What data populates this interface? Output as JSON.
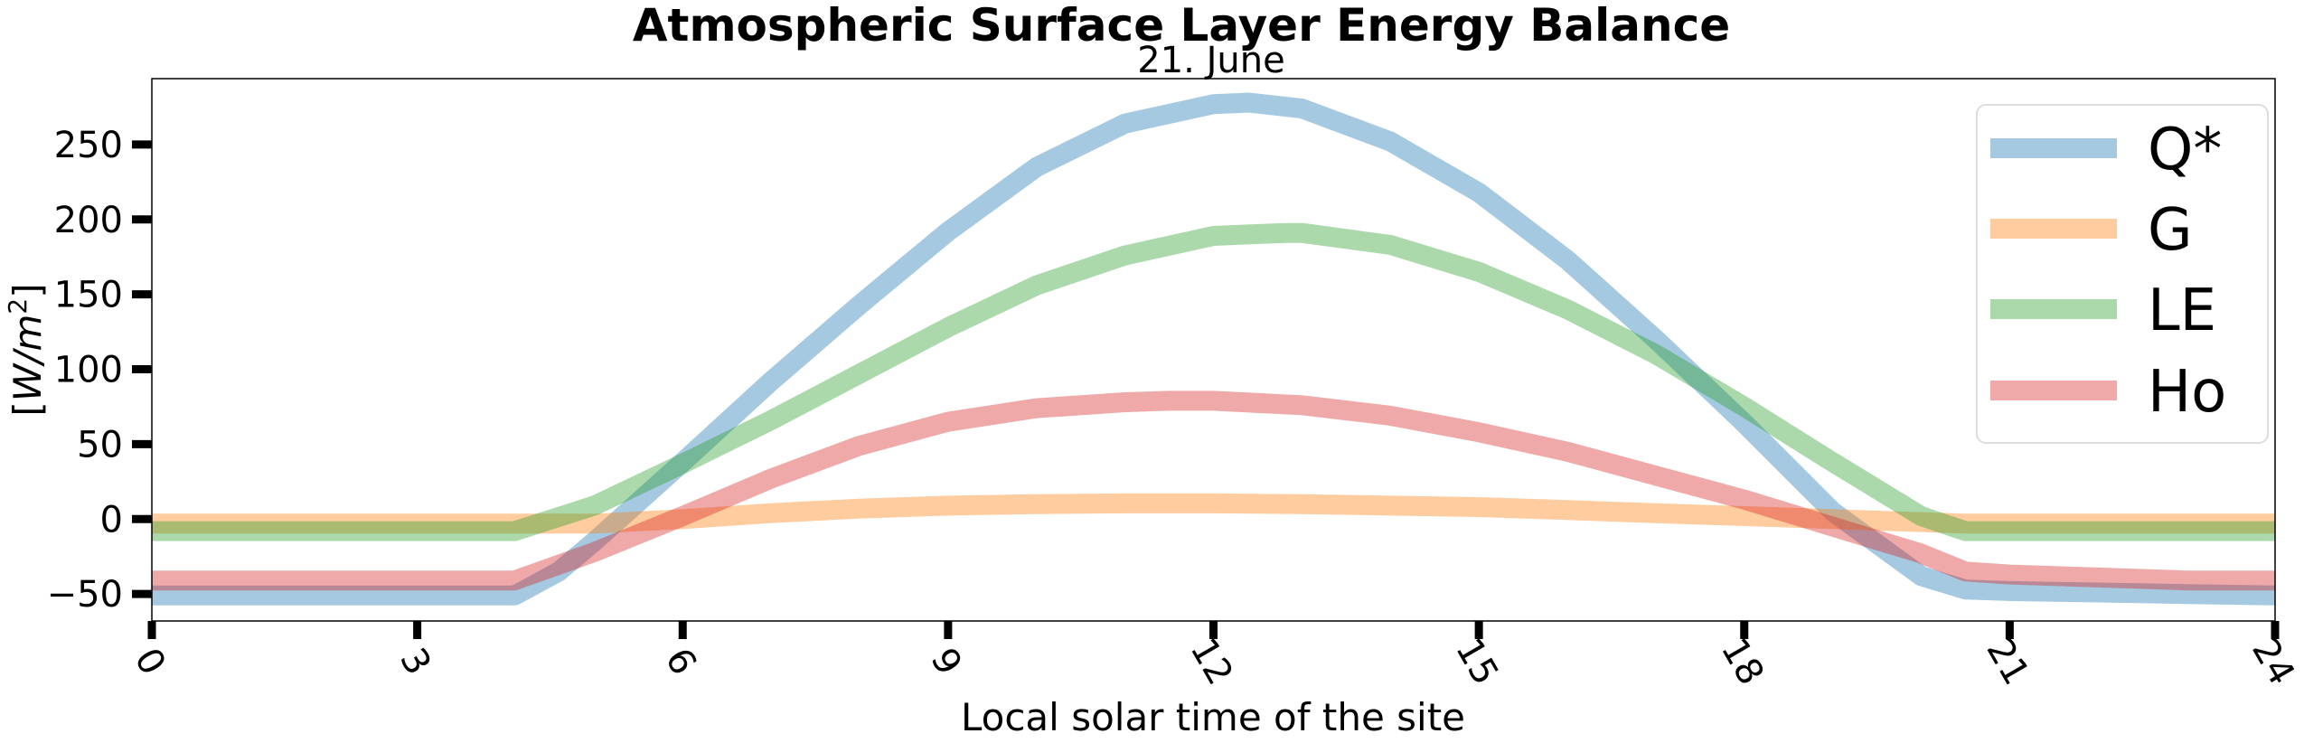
{
  "chart_data": {
    "type": "line",
    "title": "Atmospheric Surface Layer Energy Balance",
    "subtitle": "21. June",
    "xlabel": "Local solar time of the site",
    "ylabel": "[W/m²]",
    "ylabel_parts": {
      "open": "[",
      "unit": "W/m",
      "sup": "2",
      "close": "]"
    },
    "xlim": [
      0,
      24
    ],
    "ylim": [
      -68,
      294
    ],
    "xticks": [
      0,
      3,
      6,
      9,
      12,
      15,
      18,
      21,
      24
    ],
    "yticks": [
      -50,
      0,
      50,
      100,
      150,
      200,
      250
    ],
    "legend_position": "top-right",
    "grid": false,
    "series": [
      {
        "name": "Q*",
        "color": "#1f77b4",
        "points": [
          [
            0,
            -51
          ],
          [
            4.1,
            -51
          ],
          [
            4.6,
            -35
          ],
          [
            5,
            -15
          ],
          [
            6,
            38
          ],
          [
            7,
            92
          ],
          [
            8,
            143
          ],
          [
            9,
            192
          ],
          [
            10,
            235
          ],
          [
            11,
            264
          ],
          [
            12,
            277
          ],
          [
            12.4,
            278
          ],
          [
            13,
            274
          ],
          [
            14,
            252
          ],
          [
            15,
            218
          ],
          [
            16,
            173
          ],
          [
            17,
            120
          ],
          [
            18,
            64
          ],
          [
            19,
            5
          ],
          [
            20,
            -38
          ],
          [
            20.5,
            -47
          ],
          [
            21,
            -48
          ],
          [
            22,
            -49
          ],
          [
            23,
            -50
          ],
          [
            24,
            -51
          ]
        ]
      },
      {
        "name": "G",
        "color": "#ff7f0e",
        "points": [
          [
            0,
            -3
          ],
          [
            4.1,
            -3
          ],
          [
            5,
            -3
          ],
          [
            6,
            0
          ],
          [
            7,
            4
          ],
          [
            8,
            7
          ],
          [
            9,
            9
          ],
          [
            10,
            10
          ],
          [
            11,
            10.5
          ],
          [
            12,
            10.5
          ],
          [
            13,
            10
          ],
          [
            14,
            9
          ],
          [
            15,
            8
          ],
          [
            16,
            6
          ],
          [
            17,
            4
          ],
          [
            18,
            2
          ],
          [
            19,
            0
          ],
          [
            20,
            -2
          ],
          [
            20.5,
            -3
          ],
          [
            24,
            -3
          ]
        ]
      },
      {
        "name": "LE",
        "color": "#2ca02c",
        "points": [
          [
            0,
            -8
          ],
          [
            4.1,
            -8
          ],
          [
            5,
            9
          ],
          [
            6,
            37
          ],
          [
            7,
            66
          ],
          [
            8,
            97
          ],
          [
            9,
            128
          ],
          [
            10,
            156
          ],
          [
            11,
            176
          ],
          [
            12,
            189
          ],
          [
            12.8,
            191
          ],
          [
            13,
            191
          ],
          [
            14,
            183
          ],
          [
            15,
            165
          ],
          [
            16,
            140
          ],
          [
            17,
            110
          ],
          [
            18,
            75
          ],
          [
            19,
            38
          ],
          [
            20,
            2
          ],
          [
            20.5,
            -8
          ],
          [
            24,
            -8
          ]
        ]
      },
      {
        "name": "Ho",
        "color": "#d62728",
        "points": [
          [
            0,
            -41
          ],
          [
            4.1,
            -41
          ],
          [
            5,
            -22
          ],
          [
            6,
            2
          ],
          [
            7,
            27
          ],
          [
            8,
            49
          ],
          [
            9,
            65
          ],
          [
            10,
            74
          ],
          [
            11,
            78
          ],
          [
            11.5,
            79
          ],
          [
            12,
            79
          ],
          [
            13,
            76
          ],
          [
            14,
            69
          ],
          [
            15,
            58
          ],
          [
            16,
            45
          ],
          [
            17,
            29
          ],
          [
            18,
            13
          ],
          [
            19,
            -5
          ],
          [
            20,
            -23
          ],
          [
            20.5,
            -35
          ],
          [
            21,
            -37
          ],
          [
            22,
            -39
          ],
          [
            23,
            -41
          ],
          [
            24,
            -41
          ]
        ]
      }
    ]
  }
}
